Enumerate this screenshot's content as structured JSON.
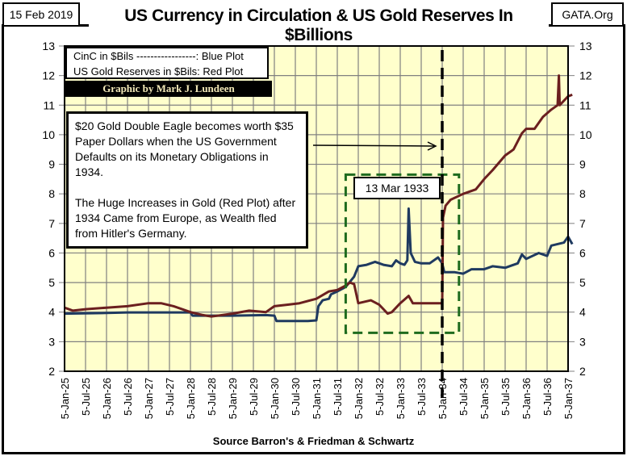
{
  "header": {
    "date": "15 Feb 2019",
    "site": "GATA.Org",
    "title": "US Currency in Circulation & US Gold Reserves In $Billions"
  },
  "legend": {
    "line1": "CinC in $Bils -----------------: Blue Plot",
    "line2": "US Gold Reserves in $Bils:  Red Plot",
    "credit": "Graphic by Mark J. Lundeen"
  },
  "note": {
    "para1": "$20 Gold Double Eagle becomes worth  $35 Paper Dollars when the US Government Defaults on its Monetary Obligations in 1934.",
    "para2": "The Huge Increases in Gold (Red Plot) after 1934 Came from  Europe, as Wealth fled from Hitler's Germany."
  },
  "event_label": "13 Mar 1933",
  "source": "Source Barron's & Friedman & Schwartz",
  "colors": {
    "plot_bg": "#ffffcc",
    "grid": "#808080",
    "currency": "#1f3a60",
    "gold": "#6b1f1f",
    "highlight_box": "#1e6b1e"
  },
  "chart_data": {
    "type": "line",
    "title": "US Currency in Circulation & US Gold Reserves In $Billions",
    "xlabel": "Source Barron's & Friedman & Schwartz",
    "ylabel": "",
    "ylim": [
      2,
      13
    ],
    "y_ticks": [
      "2",
      "3",
      "4",
      "5",
      "6",
      "7",
      "8",
      "9",
      "10",
      "11",
      "12",
      "13"
    ],
    "x_tick_labels": [
      "5-Jan-25",
      "5-Jul-25",
      "5-Jan-26",
      "5-Jul-26",
      "5-Jan-27",
      "5-Jul-27",
      "5-Jan-28",
      "5-Jul-28",
      "5-Jan-29",
      "5-Jul-29",
      "5-Jan-30",
      "5-Jul-30",
      "5-Jan-31",
      "5-Jul-31",
      "5-Jan-32",
      "5-Jul-32",
      "5-Jan-33",
      "5-Jul-33",
      "5-Jan-34",
      "5-Jul-34",
      "5-Jan-35",
      "5-Jul-35",
      "5-Jan-36",
      "5-Jul-36",
      "5-Jan-37"
    ],
    "xlim_years": [
      1925.0,
      1937.1
    ],
    "grid": true,
    "secondary_y_axis": "right (same scale)",
    "event_line_year": 1934.0,
    "highlight_box_years": [
      1931.7,
      1934.4
    ],
    "highlight_box_values": [
      3.3,
      8.65
    ],
    "series": [
      {
        "name": "CinC in $Bils (Blue Plot)",
        "x": [
          1925.0,
          1926.0,
          1926.5,
          1927.0,
          1928.0,
          1928.05,
          1929.0,
          1929.8,
          1930.0,
          1930.05,
          1930.8,
          1931.0,
          1931.05,
          1931.15,
          1931.3,
          1931.35,
          1931.5,
          1931.7,
          1931.9,
          1932.0,
          1932.2,
          1932.4,
          1932.6,
          1932.8,
          1932.9,
          1933.0,
          1933.1,
          1933.17,
          1933.2,
          1933.25,
          1933.35,
          1933.5,
          1933.7,
          1933.9,
          1934.0,
          1934.05,
          1934.3,
          1934.5,
          1934.7,
          1935.0,
          1935.2,
          1935.5,
          1935.8,
          1935.9,
          1936.0,
          1936.3,
          1936.5,
          1936.6,
          1936.9,
          1937.0,
          1937.1
        ],
        "values": [
          3.95,
          3.97,
          3.99,
          3.99,
          3.99,
          3.88,
          3.88,
          3.9,
          3.88,
          3.7,
          3.7,
          3.72,
          4.2,
          4.4,
          4.45,
          4.6,
          4.7,
          4.85,
          5.2,
          5.55,
          5.6,
          5.7,
          5.6,
          5.55,
          5.75,
          5.65,
          5.6,
          5.75,
          7.5,
          6.0,
          5.7,
          5.65,
          5.65,
          5.85,
          5.65,
          5.35,
          5.35,
          5.3,
          5.45,
          5.45,
          5.55,
          5.5,
          5.65,
          5.95,
          5.8,
          6.0,
          5.9,
          6.25,
          6.35,
          6.55,
          6.3
        ]
      },
      {
        "name": "US Gold Reserves in $Bils (Red Plot)",
        "x": [
          1925.0,
          1925.2,
          1925.5,
          1926.0,
          1926.5,
          1927.0,
          1927.3,
          1927.6,
          1928.0,
          1928.3,
          1928.5,
          1929.0,
          1929.4,
          1929.8,
          1930.0,
          1930.3,
          1930.6,
          1931.0,
          1931.3,
          1931.5,
          1931.7,
          1931.8,
          1931.9,
          1932.0,
          1932.3,
          1932.5,
          1932.7,
          1932.8,
          1933.0,
          1933.2,
          1933.3,
          1933.5,
          1934.0,
          1934.02,
          1934.08,
          1934.2,
          1934.5,
          1934.8,
          1935.0,
          1935.2,
          1935.5,
          1935.7,
          1935.9,
          1936.0,
          1936.2,
          1936.4,
          1936.6,
          1936.75,
          1936.78,
          1936.8,
          1937.0,
          1937.1
        ],
        "values": [
          4.15,
          4.05,
          4.1,
          4.15,
          4.2,
          4.3,
          4.3,
          4.2,
          4.0,
          3.9,
          3.85,
          3.95,
          4.05,
          4.0,
          4.2,
          4.25,
          4.3,
          4.45,
          4.7,
          4.75,
          4.9,
          5.0,
          4.95,
          4.3,
          4.4,
          4.25,
          3.95,
          4.0,
          4.3,
          4.55,
          4.3,
          4.3,
          4.3,
          7.2,
          7.6,
          7.8,
          8.0,
          8.15,
          8.5,
          8.8,
          9.3,
          9.5,
          10.05,
          10.2,
          10.2,
          10.6,
          10.85,
          11.0,
          12.0,
          11.0,
          11.3,
          11.35
        ]
      }
    ]
  }
}
